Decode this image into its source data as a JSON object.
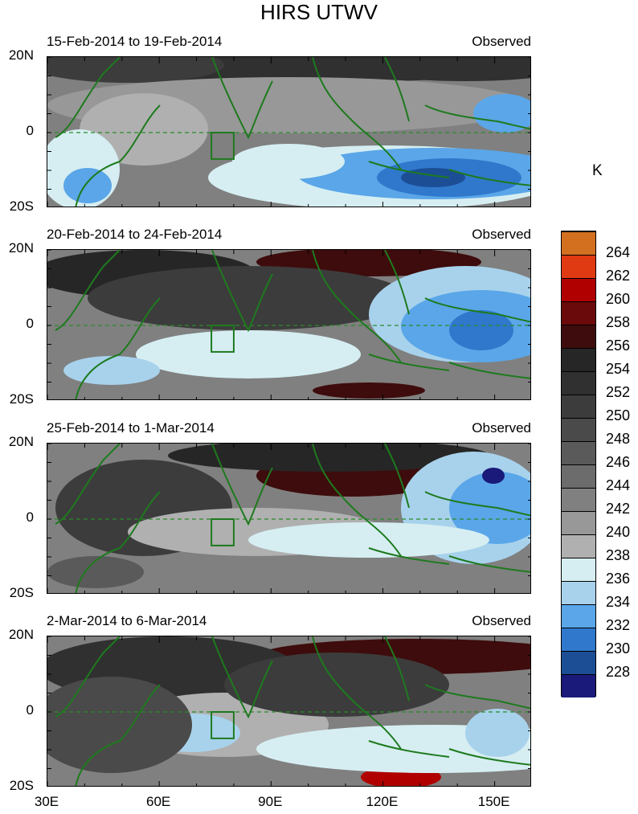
{
  "figure": {
    "title": "HIRS UTWV",
    "unit": "K",
    "lat_labels": [
      "20N",
      "0",
      "20S"
    ],
    "lon_labels": [
      "30E",
      "60E",
      "90E",
      "120E",
      "150E"
    ]
  },
  "chart_data": {
    "type": "heatmap",
    "x_range": [
      30,
      160
    ],
    "y_range": [
      -20,
      20
    ],
    "panels": [
      {
        "period": "15-Feb-2014 to 19-Feb-2014",
        "label": "Observed"
      },
      {
        "period": "20-Feb-2014 to 24-Feb-2014",
        "label": "Observed"
      },
      {
        "period": "25-Feb-2014 to 1-Mar-2014",
        "label": "Observed"
      },
      {
        "period": "2-Mar-2014 to 6-Mar-2014",
        "label": "Observed"
      }
    ],
    "colorbar": {
      "levels": [
        228,
        230,
        232,
        234,
        236,
        238,
        240,
        242,
        244,
        246,
        248,
        250,
        252,
        254,
        256,
        258,
        260,
        262,
        264
      ],
      "colors": [
        "#1a1a7a",
        "#1c4e96",
        "#2f78cc",
        "#5aa6e8",
        "#a8d2ec",
        "#d6eef2",
        "#b0b0b0",
        "#989898",
        "#808080",
        "#6c6c6c",
        "#5a5a5a",
        "#4a4a4a",
        "#3c3c3c",
        "#303030",
        "#262626",
        "#3e0c0c",
        "#6a0a0a",
        "#b00000",
        "#e03a12",
        "#d27020"
      ]
    },
    "box_region": {
      "lon": [
        74,
        80
      ],
      "lat": [
        -7,
        0
      ]
    }
  }
}
